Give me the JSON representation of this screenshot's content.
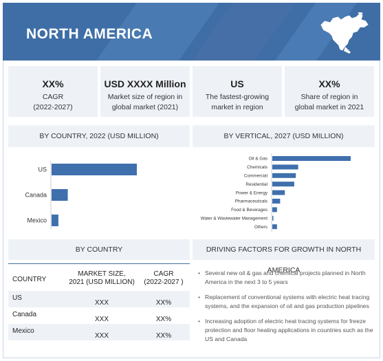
{
  "header": {
    "title": "NORTH AMERICA"
  },
  "kpis": [
    {
      "big": "XX%",
      "line1": "CAGR",
      "line2": "(2022-2027)"
    },
    {
      "big": "USD XXXX Million",
      "line1": "Market size of region in",
      "line2": "global market (2021)"
    },
    {
      "big": "US",
      "line1": "The fastest-growing",
      "line2": "market in region"
    },
    {
      "big": "XX%",
      "line1": "Share of region in",
      "line2": "global market in 2021"
    }
  ],
  "sections": {
    "by_country": "BY COUNTRY, 2022 (USD MILLION)",
    "by_vertical": "BY VERTICAL, 2027 (USD MILLION)",
    "by_country_table": "BY COUNTRY",
    "drivers": "DRIVING FACTORS FOR GROWTH IN NORTH AMERICA"
  },
  "chart_data": [
    {
      "type": "bar",
      "orientation": "horizontal",
      "title": "BY COUNTRY, 2022 (USD MILLION)",
      "categories": [
        "US",
        "Canada",
        "Mexico"
      ],
      "values": [
        100,
        19,
        8
      ],
      "xlim": [
        0,
        100
      ],
      "grid": false,
      "color": "#3f6fad"
    },
    {
      "type": "bar",
      "orientation": "horizontal",
      "title": "BY VERTICAL, 2027 (USD MILLION)",
      "categories": [
        "Oil & Gas",
        "Chemicals",
        "Commercial",
        "Residential",
        "Power & Energy",
        "Pharmaceuticals",
        "Food & Beverages",
        "Water & Wastewater Management",
        "Others"
      ],
      "values": [
        100,
        33,
        30,
        28,
        16,
        10,
        6,
        1,
        6
      ],
      "xlim": [
        0,
        100
      ],
      "grid": false,
      "color": "#3f6fad"
    }
  ],
  "table": {
    "headers": [
      "COUNTRY",
      "MARKET SIZE,\n2021 (USD MILLION)",
      "CAGR\n(2022-2027 )"
    ],
    "rows": [
      {
        "country": "US",
        "size": "XXX",
        "cagr": "XX%"
      },
      {
        "country": "Canada",
        "size": "XXX",
        "cagr": "XX%"
      },
      {
        "country": "Mexico",
        "size": "XXX",
        "cagr": "XX%"
      }
    ]
  },
  "drivers": [
    "Several new oil & gas and chemical projects planned in North America in the next 3 to 5 years",
    "Replacement of conventional systems with electric heat tracing systems, and the expansion of oil and gas production pipelines",
    "Increasing adoption of electric heat tracing systems for freeze protection and floor heating applications in countries such as the US and Canada"
  ]
}
